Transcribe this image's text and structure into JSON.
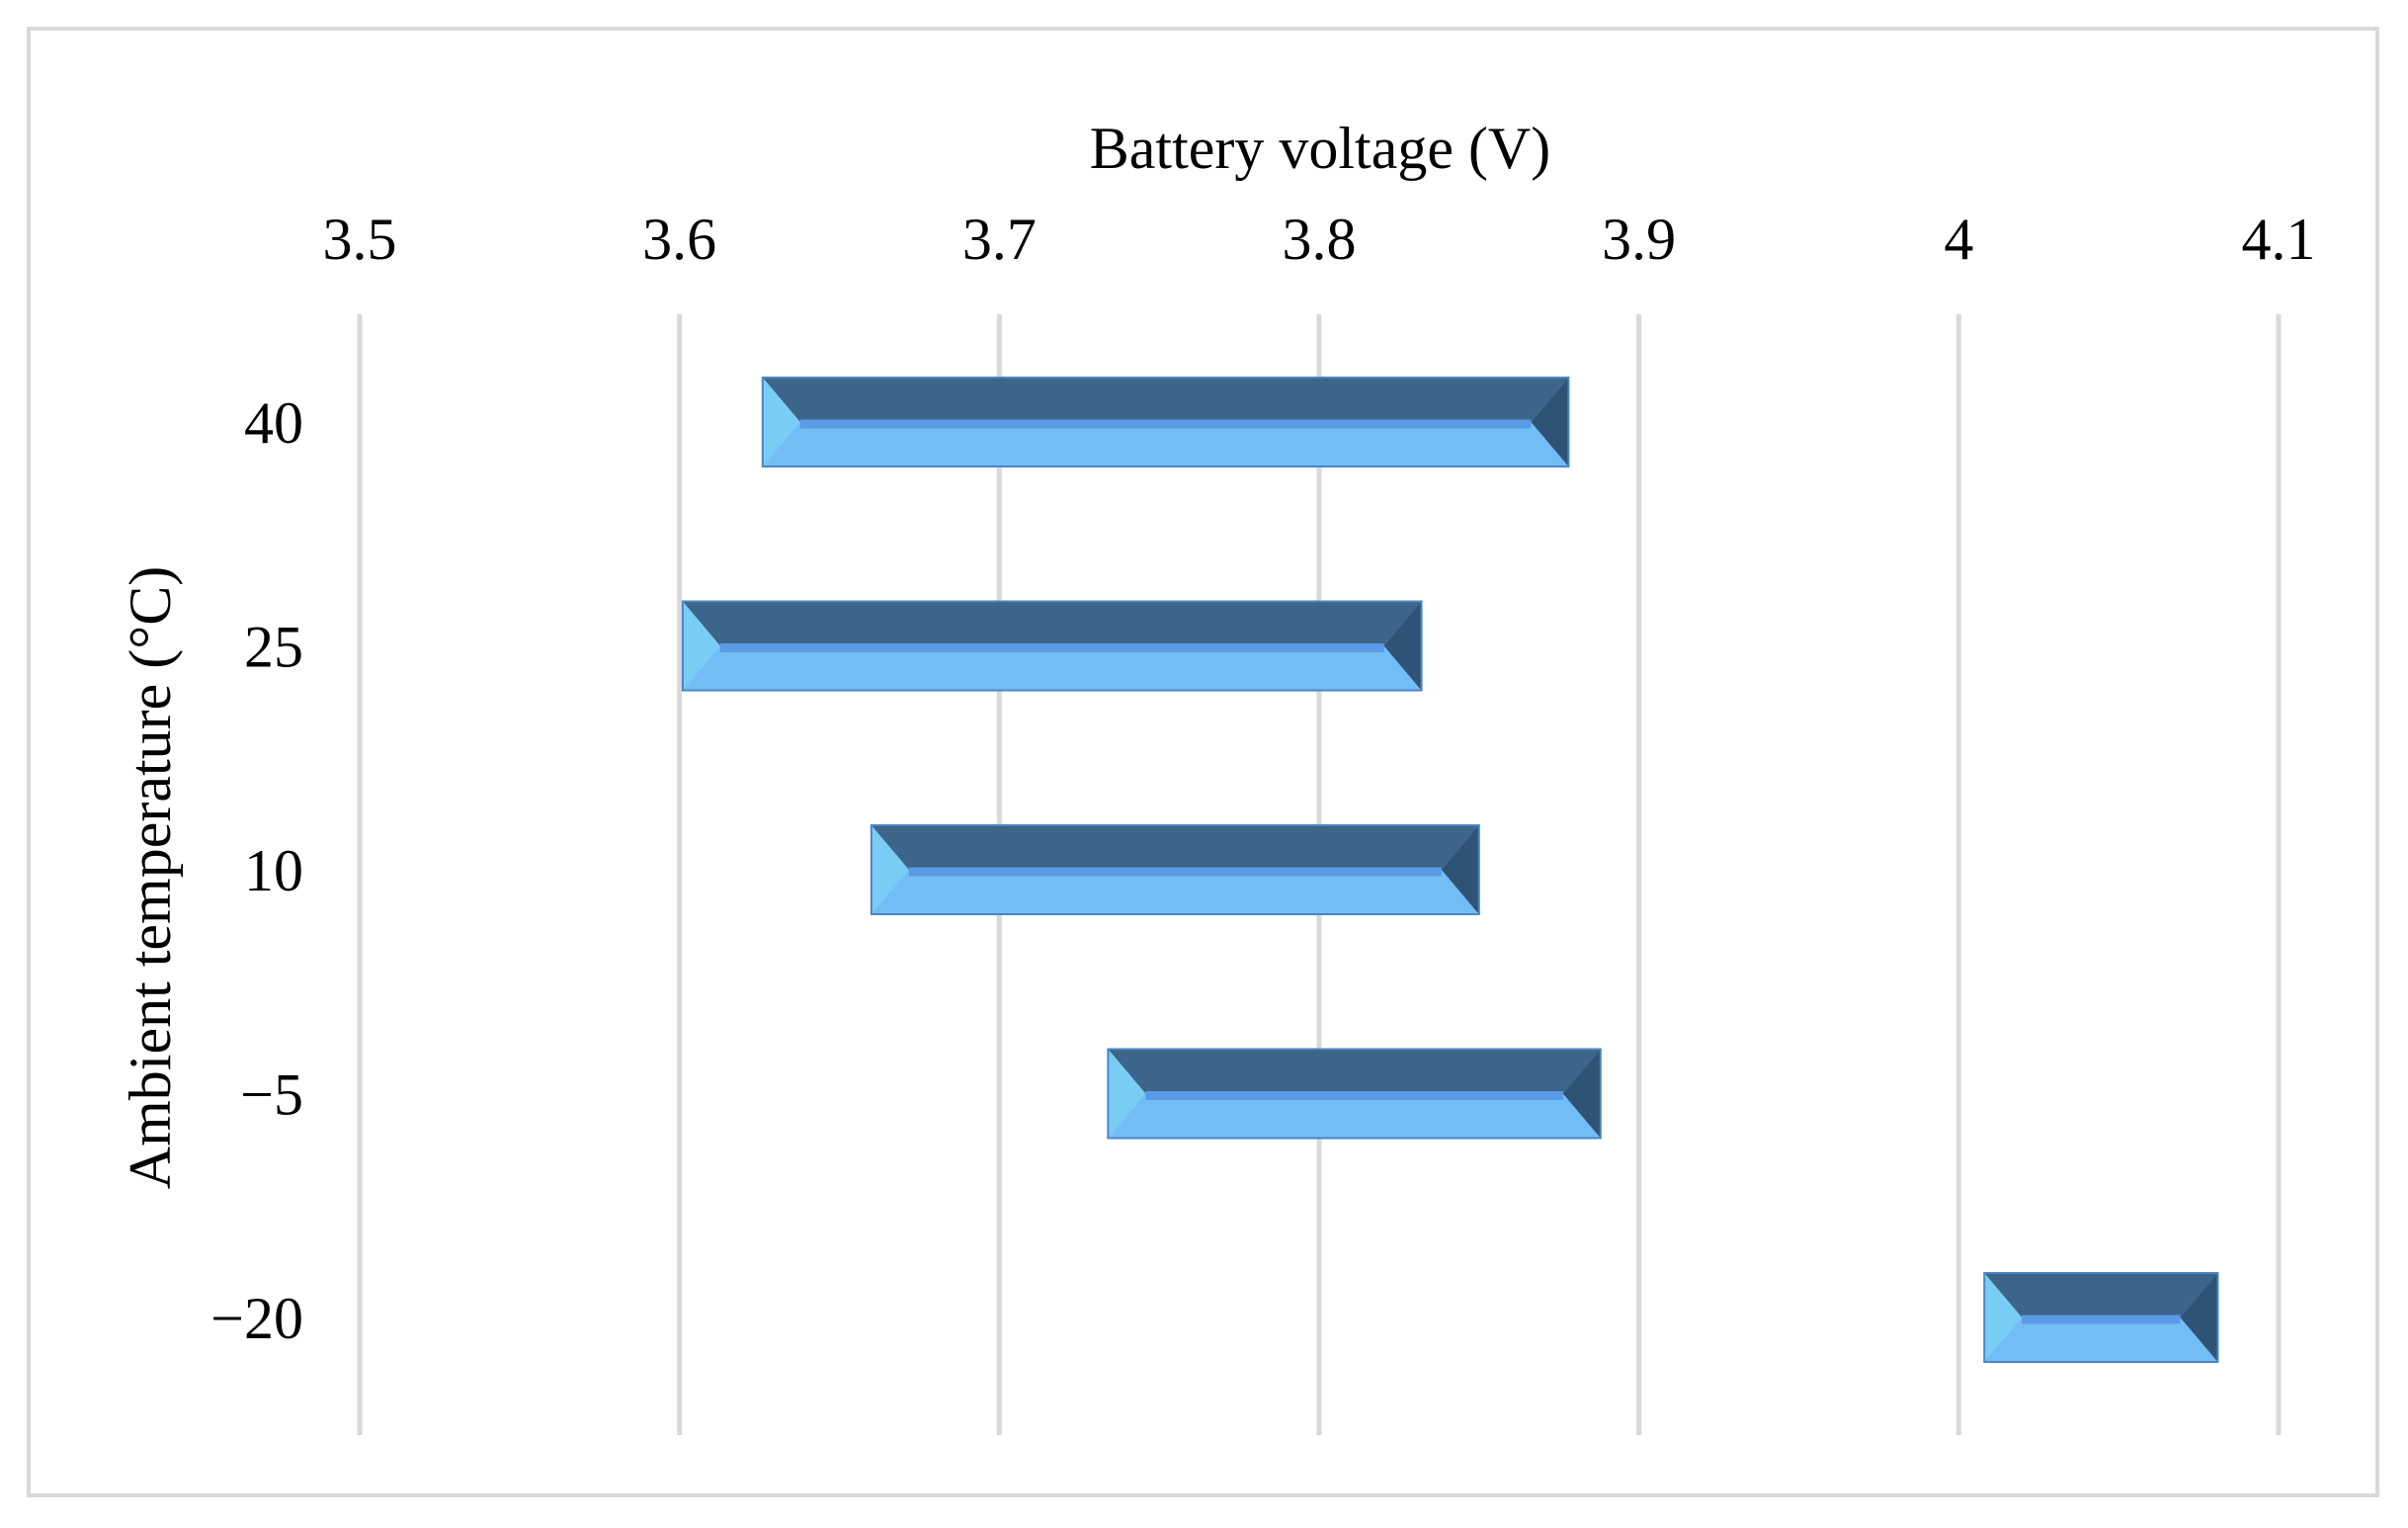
{
  "chart_data": {
    "type": "bar",
    "orientation": "horizontal",
    "style": "floating-range",
    "xlabel": "Battery voltage (V)",
    "ylabel": "Ambient temperature (°C)",
    "xlim": [
      3.5,
      4.1
    ],
    "x_ticks": [
      "3.5",
      "3.6",
      "3.7",
      "3.8",
      "3.9",
      "4",
      "4.1"
    ],
    "x_axis_position": "top",
    "grid": "vertical",
    "legend": "none",
    "categories": [
      "40",
      "25",
      "10",
      "−5",
      "−20"
    ],
    "ranges": [
      {
        "category": "40",
        "low": 3.626,
        "high": 3.878
      },
      {
        "category": "25",
        "low": 3.601,
        "high": 3.832
      },
      {
        "category": "10",
        "low": 3.66,
        "high": 3.85
      },
      {
        "category": "−5",
        "low": 3.734,
        "high": 3.888
      },
      {
        "category": "−20",
        "low": 4.008,
        "high": 4.081
      }
    ],
    "colors": {
      "bar_top": "#3d6489",
      "bar_bottom": "#73bdf7",
      "bar_mid_line": "#5a9ae6",
      "bar_left_bevel": "#79cdf5",
      "bar_right_bevel": "#2f5377",
      "gridline": "#d9d9d9",
      "frame": "#d9d9d9"
    }
  }
}
